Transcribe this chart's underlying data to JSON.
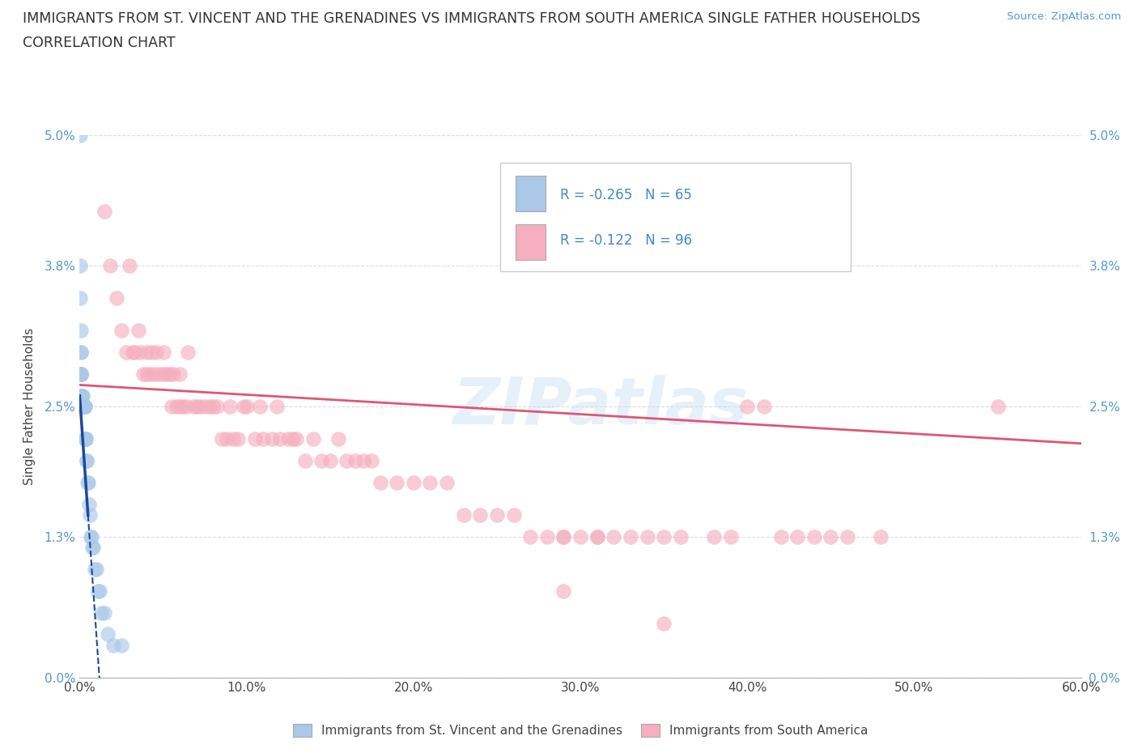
{
  "title_line1": "IMMIGRANTS FROM ST. VINCENT AND THE GRENADINES VS IMMIGRANTS FROM SOUTH AMERICA SINGLE FATHER HOUSEHOLDS",
  "title_line2": "CORRELATION CHART",
  "source_text": "Source: ZipAtlas.com",
  "ylabel": "Single Father Households",
  "xlim": [
    0.0,
    0.6
  ],
  "ylim": [
    0.0,
    0.05
  ],
  "xticks": [
    0.0,
    0.1,
    0.2,
    0.3,
    0.4,
    0.5,
    0.6
  ],
  "xticklabels": [
    "0.0%",
    "10.0%",
    "20.0%",
    "30.0%",
    "40.0%",
    "50.0%",
    "60.0%"
  ],
  "yticks": [
    0.0,
    0.013,
    0.025,
    0.038,
    0.05
  ],
  "yticklabels": [
    "0.0%",
    "1.3%",
    "2.5%",
    "3.8%",
    "5.0%"
  ],
  "blue_color": "#aac8e8",
  "pink_color": "#f5afc0",
  "blue_line_color": "#1a4a9a",
  "pink_line_color": "#e05575",
  "watermark": "ZIPatlas",
  "grid_color": "#dddddd",
  "legend_label1": "Immigrants from St. Vincent and the Grenadines",
  "legend_label2": "Immigrants from South America",
  "blue_scatter_x": [
    0.0002,
    0.0004,
    0.0005,
    0.0006,
    0.0006,
    0.0007,
    0.0007,
    0.0008,
    0.0008,
    0.0009,
    0.0009,
    0.001,
    0.001,
    0.001,
    0.0012,
    0.0012,
    0.0013,
    0.0013,
    0.0014,
    0.0015,
    0.0015,
    0.0016,
    0.0016,
    0.0017,
    0.0017,
    0.0018,
    0.0018,
    0.0019,
    0.002,
    0.002,
    0.002,
    0.0021,
    0.0022,
    0.0022,
    0.0023,
    0.0024,
    0.0025,
    0.0025,
    0.0026,
    0.0027,
    0.0028,
    0.003,
    0.003,
    0.0032,
    0.0033,
    0.0035,
    0.0036,
    0.004,
    0.0042,
    0.0045,
    0.005,
    0.0055,
    0.006,
    0.0065,
    0.007,
    0.0075,
    0.008,
    0.009,
    0.01,
    0.011,
    0.012,
    0.013,
    0.015,
    0.017,
    0.02,
    0.025
  ],
  "blue_scatter_y": [
    0.05,
    0.038,
    0.035,
    0.032,
    0.03,
    0.03,
    0.028,
    0.028,
    0.026,
    0.028,
    0.026,
    0.028,
    0.026,
    0.025,
    0.026,
    0.025,
    0.026,
    0.025,
    0.025,
    0.026,
    0.025,
    0.025,
    0.025,
    0.025,
    0.025,
    0.025,
    0.025,
    0.025,
    0.025,
    0.025,
    0.025,
    0.025,
    0.025,
    0.025,
    0.025,
    0.025,
    0.025,
    0.025,
    0.025,
    0.025,
    0.025,
    0.025,
    0.025,
    0.022,
    0.022,
    0.022,
    0.022,
    0.02,
    0.02,
    0.018,
    0.018,
    0.016,
    0.015,
    0.013,
    0.013,
    0.012,
    0.012,
    0.01,
    0.01,
    0.008,
    0.008,
    0.006,
    0.006,
    0.004,
    0.003,
    0.003
  ],
  "pink_scatter_x": [
    0.015,
    0.018,
    0.022,
    0.025,
    0.028,
    0.03,
    0.032,
    0.033,
    0.035,
    0.036,
    0.038,
    0.04,
    0.04,
    0.042,
    0.043,
    0.045,
    0.046,
    0.048,
    0.05,
    0.05,
    0.052,
    0.054,
    0.055,
    0.056,
    0.058,
    0.06,
    0.06,
    0.062,
    0.064,
    0.065,
    0.068,
    0.07,
    0.072,
    0.075,
    0.078,
    0.08,
    0.082,
    0.085,
    0.088,
    0.09,
    0.092,
    0.095,
    0.098,
    0.1,
    0.105,
    0.108,
    0.11,
    0.115,
    0.118,
    0.12,
    0.125,
    0.128,
    0.13,
    0.135,
    0.14,
    0.145,
    0.15,
    0.155,
    0.16,
    0.165,
    0.17,
    0.175,
    0.18,
    0.19,
    0.2,
    0.21,
    0.22,
    0.23,
    0.24,
    0.25,
    0.26,
    0.27,
    0.28,
    0.29,
    0.3,
    0.31,
    0.32,
    0.34,
    0.35,
    0.36,
    0.38,
    0.39,
    0.4,
    0.41,
    0.42,
    0.43,
    0.44,
    0.45,
    0.46,
    0.48,
    0.29,
    0.31,
    0.33,
    0.55,
    0.29,
    0.35
  ],
  "pink_scatter_y": [
    0.043,
    0.038,
    0.035,
    0.032,
    0.03,
    0.038,
    0.03,
    0.03,
    0.032,
    0.03,
    0.028,
    0.03,
    0.028,
    0.028,
    0.03,
    0.028,
    0.03,
    0.028,
    0.03,
    0.028,
    0.028,
    0.028,
    0.025,
    0.028,
    0.025,
    0.028,
    0.025,
    0.025,
    0.025,
    0.03,
    0.025,
    0.025,
    0.025,
    0.025,
    0.025,
    0.025,
    0.025,
    0.022,
    0.022,
    0.025,
    0.022,
    0.022,
    0.025,
    0.025,
    0.022,
    0.025,
    0.022,
    0.022,
    0.025,
    0.022,
    0.022,
    0.022,
    0.022,
    0.02,
    0.022,
    0.02,
    0.02,
    0.022,
    0.02,
    0.02,
    0.02,
    0.02,
    0.018,
    0.018,
    0.018,
    0.018,
    0.018,
    0.015,
    0.015,
    0.015,
    0.015,
    0.013,
    0.013,
    0.013,
    0.013,
    0.013,
    0.013,
    0.013,
    0.013,
    0.013,
    0.013,
    0.013,
    0.025,
    0.025,
    0.013,
    0.013,
    0.013,
    0.013,
    0.013,
    0.013,
    0.013,
    0.013,
    0.013,
    0.025,
    0.008,
    0.005
  ]
}
